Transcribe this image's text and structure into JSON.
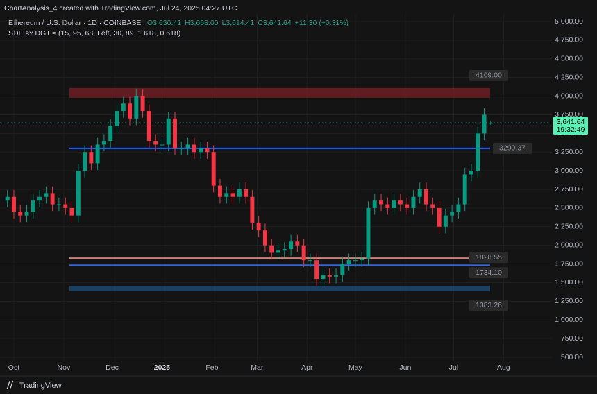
{
  "chart_data": {
    "type": "candlestick",
    "credit": "ChartAnalysis_4 created with TradingView.com, Jul 24, 2025 04:27 UTC",
    "title": "Ethereum / U.S. Dollar · 1D · COINBASE",
    "ohlc_labels": [
      "O3,630.41",
      "H3,668.00",
      "L3,614.41",
      "C3,641.64",
      "+11.30 (+0.31%)"
    ],
    "indicator": "SDE ʙʏ DGT ≈ (15, 95, 68, Left, 30, 89, 1.618, 0.618)",
    "last_price_label": "3,641.64",
    "countdown": "19:32:49",
    "footer": "TradingView",
    "up_color": "#089981",
    "down_color": "#f23645",
    "xlim": [
      -8.6,
      334
    ],
    "ylim": [
      500,
      5000
    ],
    "grid": true,
    "xticks": [
      {
        "value": 0,
        "label": "Oct"
      },
      {
        "value": 31,
        "label": "Nov"
      },
      {
        "value": 61,
        "label": "Dec"
      },
      {
        "value": 92,
        "label": "2025"
      },
      {
        "value": 123,
        "label": "Feb"
      },
      {
        "value": 151,
        "label": "Mar"
      },
      {
        "value": 182,
        "label": "Apr"
      },
      {
        "value": 212,
        "label": "May"
      },
      {
        "value": 243,
        "label": "Jun"
      },
      {
        "value": 273,
        "label": "Jul"
      },
      {
        "value": 304,
        "label": "Aug"
      }
    ],
    "yticks": [
      {
        "value": 500,
        "label": "500.00"
      },
      {
        "value": 750,
        "label": "750.00"
      },
      {
        "value": 1000,
        "label": "1,000.00"
      },
      {
        "value": 1250,
        "label": "1,250.00"
      },
      {
        "value": 1500,
        "label": "1,500.00"
      },
      {
        "value": 1750,
        "label": "1,750.00"
      },
      {
        "value": 2000,
        "label": "2,000.00"
      },
      {
        "value": 2250,
        "label": "2,250.00"
      },
      {
        "value": 2500,
        "label": "2,500.00"
      },
      {
        "value": 2750,
        "label": "2,750.00"
      },
      {
        "value": 3000,
        "label": "3,000.00"
      },
      {
        "value": 3250,
        "label": "3,250.00"
      },
      {
        "value": 3500,
        "label": "3,500.00"
      },
      {
        "value": 3750,
        "label": "3,750.00"
      },
      {
        "value": 4000,
        "label": "4,000.00"
      },
      {
        "value": 4250,
        "label": "4,250.00"
      },
      {
        "value": 4500,
        "label": "4,500.00"
      },
      {
        "value": 4750,
        "label": "4,750.00"
      },
      {
        "value": 5000,
        "label": "5,000.00"
      }
    ],
    "levels": [
      {
        "value": 4109,
        "label": "4109.00",
        "color": "#7a1f24"
      },
      {
        "value": 3299.37,
        "label": "3299.37",
        "color": "#2962ff"
      },
      {
        "value": 1828.55,
        "label": "1828.55",
        "color": "#e07b6a"
      },
      {
        "value": 1734.1,
        "label": "1734.10",
        "color": "#2962ff"
      },
      {
        "value": 1383.26,
        "label": "1383.26",
        "color": "#1f4e79"
      }
    ],
    "x": [
      -4,
      0,
      4,
      8,
      12,
      16,
      20,
      24,
      28,
      32,
      36,
      40,
      44,
      48,
      52,
      56,
      60,
      64,
      68,
      72,
      76,
      80,
      84,
      88,
      92,
      96,
      100,
      104,
      108,
      112,
      116,
      120,
      124,
      128,
      132,
      136,
      140,
      144,
      148,
      152,
      156,
      160,
      164,
      168,
      172,
      176,
      180,
      184,
      188,
      192,
      196,
      200,
      204,
      208,
      212,
      216,
      220,
      224,
      228,
      232,
      236,
      240,
      244,
      248,
      252,
      256,
      260,
      264,
      268,
      272,
      276,
      280,
      284,
      288,
      292,
      296
    ],
    "open": [
      2600,
      2650,
      2450,
      2400,
      2450,
      2600,
      2650,
      2700,
      2550,
      2550,
      2500,
      2400,
      3000,
      3250,
      3100,
      3350,
      3400,
      3600,
      3800,
      3900,
      3700,
      4000,
      3800,
      3400,
      3350,
      3350,
      3700,
      3300,
      3300,
      3350,
      3250,
      3300,
      3250,
      2800,
      2650,
      2700,
      2650,
      2750,
      2650,
      2300,
      2200,
      2000,
      1900,
      1930,
      1950,
      2050,
      2000,
      1800,
      1800,
      1550,
      1600,
      1580,
      1600,
      1750,
      1800,
      1800,
      1820,
      2500,
      2600,
      2550,
      2500,
      2600,
      2550,
      2500,
      2650,
      2750,
      2550,
      2500,
      2250,
      2400,
      2450,
      2550,
      2950,
      3000,
      3500,
      3630.41
    ],
    "high": [
      2740,
      2740,
      2540,
      2540,
      2690,
      2740,
      2790,
      2790,
      2640,
      2640,
      2590,
      3090,
      3340,
      3340,
      3440,
      3490,
      3690,
      3890,
      3990,
      3990,
      4100,
      4090,
      3890,
      3490,
      3440,
      3790,
      3790,
      3390,
      3440,
      3440,
      3390,
      3390,
      3340,
      2890,
      2790,
      2790,
      2840,
      2840,
      2740,
      2390,
      2290,
      2090,
      2020,
      2040,
      2140,
      2140,
      2090,
      1890,
      1890,
      1690,
      1690,
      1690,
      1840,
      1890,
      1890,
      1910,
      2590,
      2690,
      2690,
      2640,
      2690,
      2690,
      2640,
      2740,
      2840,
      2840,
      2640,
      2590,
      2490,
      2540,
      2640,
      3040,
      3090,
      3590,
      3840,
      3668
    ],
    "low": [
      2510,
      2360,
      2310,
      2310,
      2360,
      2510,
      2560,
      2460,
      2460,
      2410,
      2310,
      2310,
      2910,
      3010,
      3010,
      3260,
      3310,
      3510,
      3710,
      3610,
      3610,
      3710,
      3310,
      3260,
      3260,
      3260,
      3210,
      3210,
      3210,
      3160,
      3160,
      3160,
      2710,
      2560,
      2560,
      2560,
      2560,
      2560,
      2210,
      2110,
      1910,
      1810,
      1810,
      1840,
      1860,
      1910,
      1710,
      1710,
      1460,
      1460,
      1490,
      1490,
      1510,
      1660,
      1710,
      1710,
      1730,
      2410,
      2460,
      2410,
      2410,
      2460,
      2410,
      2410,
      2560,
      2460,
      2410,
      2160,
      2160,
      2310,
      2360,
      2460,
      2860,
      2910,
      3410,
      3614.41
    ],
    "close": [
      2650,
      2450,
      2400,
      2450,
      2600,
      2650,
      2700,
      2550,
      2550,
      2500,
      2400,
      3000,
      3250,
      3100,
      3350,
      3400,
      3600,
      3800,
      3900,
      3700,
      4000,
      3800,
      3400,
      3350,
      3350,
      3700,
      3300,
      3300,
      3350,
      3250,
      3300,
      3250,
      2800,
      2650,
      2700,
      2650,
      2750,
      2650,
      2300,
      2200,
      2000,
      1900,
      1930,
      1950,
      2050,
      2000,
      1800,
      1800,
      1550,
      1600,
      1580,
      1600,
      1750,
      1800,
      1800,
      1820,
      2500,
      2600,
      2550,
      2500,
      2600,
      2550,
      2500,
      2650,
      2750,
      2550,
      2500,
      2250,
      2400,
      2450,
      2550,
      2950,
      3000,
      3500,
      3750,
      3641.64
    ]
  }
}
